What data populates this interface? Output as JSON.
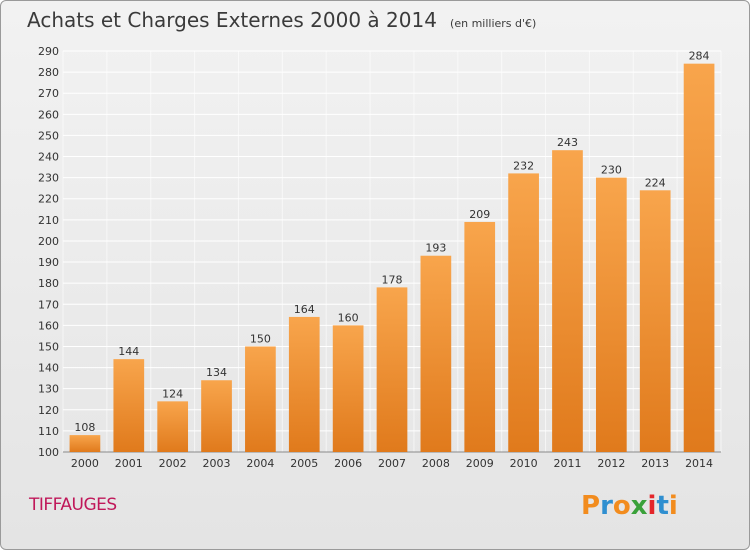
{
  "title": "Achats et Charges Externes 2000 à 2014",
  "subtitle": "(en milliers d'€)",
  "city": "TIFFAUGES",
  "logo": {
    "letters": [
      "P",
      "r",
      "o",
      "x",
      "i",
      "t",
      "i"
    ],
    "colors": [
      "#f28c1e",
      "#2f8fd0",
      "#f28c1e",
      "#3aa13a",
      "#e4262a",
      "#2f8fd0",
      "#f28c1e"
    ]
  },
  "colors": {
    "bar_light": "#f8a54c",
    "bar_dark": "#e07a1c",
    "grid": "#ffffff",
    "title": "#3b3b3b",
    "city": "#c0185a"
  },
  "chart_data": {
    "type": "bar",
    "title": "Achats et Charges Externes 2000 à 2014",
    "subtitle": "(en milliers d'€)",
    "categories": [
      "2000",
      "2001",
      "2002",
      "2003",
      "2004",
      "2005",
      "2006",
      "2007",
      "2008",
      "2009",
      "2010",
      "2011",
      "2012",
      "2013",
      "2014"
    ],
    "values": [
      108,
      144,
      124,
      134,
      150,
      164,
      160,
      178,
      193,
      209,
      232,
      243,
      230,
      224,
      284
    ],
    "ylim": [
      100,
      290
    ],
    "yticks": [
      100,
      110,
      120,
      130,
      140,
      150,
      160,
      170,
      180,
      190,
      200,
      210,
      220,
      230,
      240,
      250,
      260,
      270,
      280,
      290
    ],
    "xlabel": "",
    "ylabel": "",
    "grid": true,
    "legend": "none"
  }
}
